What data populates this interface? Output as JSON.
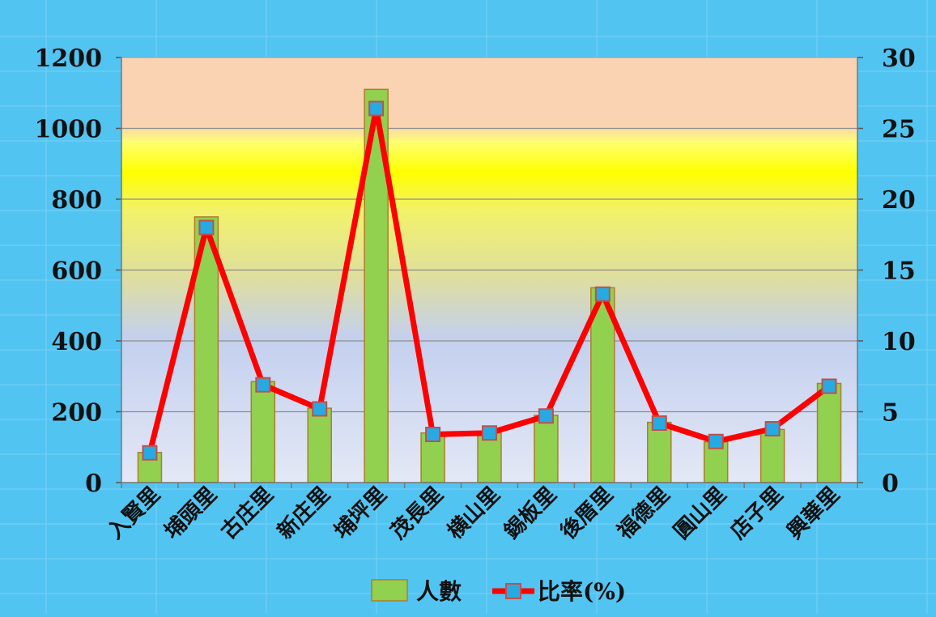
{
  "chart_data": {
    "type": "bar",
    "title": "",
    "xlabel": "",
    "ylabel": "",
    "y2label": "",
    "categories": [
      "入賢里",
      "埔頭里",
      "古庄里",
      "新庄里",
      "埔坪里",
      "茂長里",
      "横山里",
      "錫板里",
      "後厝里",
      "福德里",
      "圓山里",
      "店子里",
      "興華里"
    ],
    "series": [
      {
        "name": "人數",
        "type": "bar",
        "axis": "left",
        "color": "#92d050",
        "values": [
          85,
          750,
          285,
          210,
          1110,
          140,
          140,
          190,
          550,
          170,
          115,
          150,
          280
        ]
      },
      {
        "name": "比率(%)",
        "type": "line",
        "axis": "right",
        "color": "#ff0000",
        "marker_color": "#27aae1",
        "values": [
          2.1,
          18.0,
          6.9,
          5.2,
          26.4,
          3.4,
          3.5,
          4.7,
          13.3,
          4.2,
          2.9,
          3.8,
          6.8
        ]
      }
    ],
    "ylim": [
      0,
      1200
    ],
    "y2lim": [
      0,
      30
    ],
    "yticks": [
      "0",
      "200",
      "400",
      "600",
      "800",
      "1000",
      "1200"
    ],
    "y2ticks": [
      "0",
      "5",
      "10",
      "15",
      "20",
      "25",
      "30"
    ],
    "grid": true,
    "legend": "bottom"
  }
}
